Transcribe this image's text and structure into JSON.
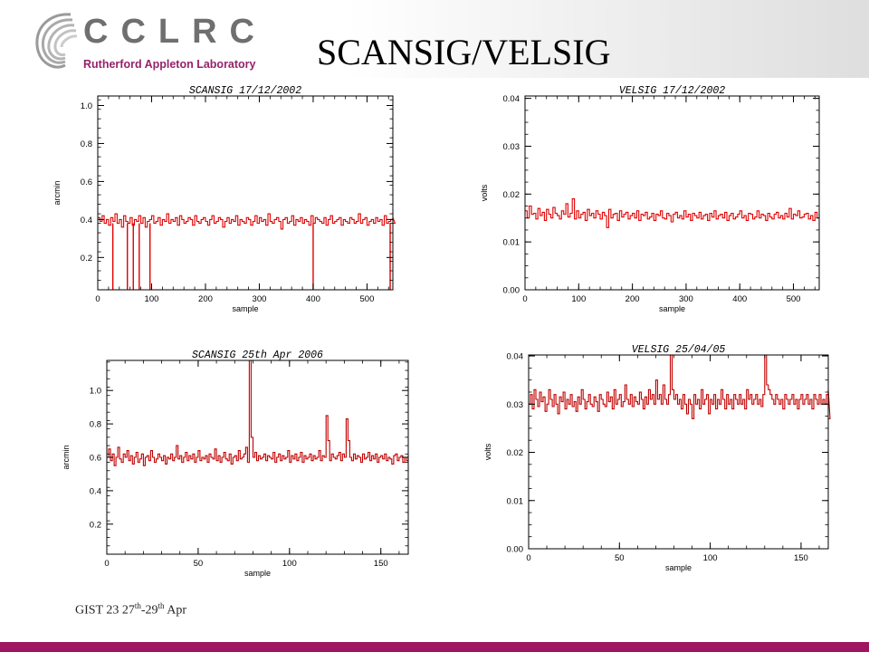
{
  "slide": {
    "title": "SCANSIG/VELSIG",
    "logo_text": "CCLRC",
    "logo_sub": "Rutherford Appleton Laboratory",
    "footer": {
      "prefix": "GIST 23 27",
      "sup1": "th",
      "mid": "-29",
      "sup2": "th",
      "suffix": " Apr"
    },
    "colors": {
      "accent_bar": "#a0155f",
      "logo_sub": "#96236a",
      "trace_bright": "#e00000",
      "trace_dark": "#c00000"
    }
  },
  "chart_data": [
    {
      "id": "scansig-2002",
      "type": "line",
      "title": "SCANSIG 17/12/2002",
      "xlabel": "sample",
      "ylabel": "arcmin",
      "xlim": [
        0,
        548
      ],
      "ylim": [
        0.03,
        1.05
      ],
      "xticks": [
        0,
        100,
        200,
        300,
        400,
        500
      ],
      "yticks": [
        0.2,
        0.4,
        0.6,
        0.8,
        1.0
      ],
      "ytick_labels": [
        "0.2",
        "0.4",
        "0.6",
        "0.8",
        "1.0"
      ],
      "series": [
        {
          "color": "#e00000",
          "step": 4,
          "values": [
            0.41,
            0.39,
            0.42,
            0.38,
            0.4,
            0.37,
            0.41,
            0.39,
            0.43,
            0.38,
            0.4,
            0.36,
            0.42,
            0.39,
            0.38,
            0.41,
            0.37,
            0.4,
            0.39,
            0.42,
            0.38,
            0.41,
            0.36,
            0.39,
            0.4,
            0.42,
            0.38,
            0.39,
            0.41,
            0.37,
            0.4,
            0.39,
            0.43,
            0.38,
            0.4,
            0.39,
            0.41,
            0.37,
            0.42,
            0.4,
            0.38,
            0.39,
            0.41,
            0.4,
            0.37,
            0.42,
            0.39,
            0.38,
            0.4,
            0.41,
            0.39,
            0.37,
            0.4,
            0.42,
            0.38,
            0.39,
            0.41,
            0.4,
            0.36,
            0.39,
            0.41,
            0.38,
            0.4,
            0.39,
            0.42,
            0.37,
            0.4,
            0.39,
            0.38,
            0.41,
            0.4,
            0.37,
            0.39,
            0.42,
            0.38,
            0.41,
            0.39,
            0.4,
            0.37,
            0.43,
            0.39,
            0.38,
            0.4,
            0.41,
            0.39,
            0.35,
            0.4,
            0.41,
            0.38,
            0.39,
            0.42,
            0.37,
            0.4,
            0.39,
            0.41,
            0.38,
            0.4,
            0.39,
            0.37,
            0.42,
            0.38,
            0.41,
            0.4,
            0.39,
            0.38,
            0.41,
            0.37,
            0.4,
            0.42,
            0.38,
            0.39,
            0.4,
            0.41,
            0.37,
            0.4,
            0.39,
            0.38,
            0.41,
            0.4,
            0.38,
            0.39,
            0.43,
            0.38,
            0.4,
            0.41,
            0.37,
            0.39,
            0.4,
            0.38,
            0.41,
            0.39,
            0.4,
            0.37,
            0.42,
            0.38,
            0.39,
            0.4,
            0.41,
            0.38
          ]
        }
      ],
      "dropouts": [
        {
          "x": 28,
          "y": 0.03
        },
        {
          "x": 55,
          "y": 0.03
        },
        {
          "x": 66,
          "y": 0.03
        },
        {
          "x": 77,
          "y": 0.03
        },
        {
          "x": 97,
          "y": 0.03
        },
        {
          "x": 400,
          "y": 0.03
        },
        {
          "x": 543,
          "y": 0.03
        }
      ]
    },
    {
      "id": "velsig-2002",
      "type": "line",
      "title": "VELSIG 17/12/2002",
      "xlabel": "sample",
      "ylabel": "volts",
      "xlim": [
        0,
        548
      ],
      "ylim": [
        0,
        0.0405
      ],
      "xticks": [
        0,
        100,
        200,
        300,
        400,
        500
      ],
      "yticks": [
        0,
        0.01,
        0.02,
        0.03,
        0.04
      ],
      "ytick_labels": [
        "0.00",
        "0.01",
        "0.02",
        "0.03",
        "0.04"
      ],
      "series": [
        {
          "color": "#e00000",
          "step": 4,
          "values": [
            0.0165,
            0.015,
            0.0175,
            0.0158,
            0.016,
            0.0148,
            0.017,
            0.0155,
            0.0162,
            0.0145,
            0.0168,
            0.0158,
            0.015,
            0.0172,
            0.016,
            0.0155,
            0.0148,
            0.0165,
            0.0158,
            0.018,
            0.0152,
            0.016,
            0.019,
            0.0148,
            0.0165,
            0.015,
            0.0158,
            0.0162,
            0.0145,
            0.0168,
            0.0155,
            0.016,
            0.015,
            0.0165,
            0.0158,
            0.0148,
            0.0162,
            0.0155,
            0.013,
            0.0168,
            0.015,
            0.0158,
            0.016,
            0.0145,
            0.0165,
            0.0152,
            0.0158,
            0.0162,
            0.0148,
            0.0155,
            0.016,
            0.015,
            0.0165,
            0.0145,
            0.0158,
            0.0155,
            0.0162,
            0.0148,
            0.0152,
            0.016,
            0.0145,
            0.0158,
            0.0155,
            0.0165,
            0.015,
            0.0148,
            0.016,
            0.0155,
            0.0142,
            0.0158,
            0.0162,
            0.015,
            0.0155,
            0.0148,
            0.0165,
            0.0152,
            0.0158,
            0.0145,
            0.016,
            0.0155,
            0.015,
            0.0162,
            0.0148,
            0.0155,
            0.0158,
            0.0145,
            0.016,
            0.0152,
            0.0165,
            0.0148,
            0.0155,
            0.0158,
            0.015,
            0.0162,
            0.0145,
            0.0155,
            0.016,
            0.0148,
            0.0152,
            0.0158,
            0.0165,
            0.015,
            0.0155,
            0.0145,
            0.016,
            0.0158,
            0.0148,
            0.0152,
            0.0165,
            0.015,
            0.0158,
            0.0155,
            0.0145,
            0.016,
            0.0152,
            0.0148,
            0.0158,
            0.0162,
            0.015,
            0.0155,
            0.0148,
            0.016,
            0.0152,
            0.017,
            0.0148,
            0.0158,
            0.0155,
            0.0165,
            0.015,
            0.0152,
            0.0158,
            0.016,
            0.0148,
            0.0155,
            0.0145,
            0.0162,
            0.015,
            0.0158
          ]
        }
      ]
    },
    {
      "id": "scansig-2006",
      "type": "line",
      "title": "SCANSIG 25th Apr 2006",
      "xlabel": "sample",
      "ylabel": "arcmin",
      "xlim": [
        0,
        165
      ],
      "ylim": [
        0.02,
        1.18
      ],
      "xticks": [
        0,
        50,
        100,
        150
      ],
      "yticks": [
        0.2,
        0.4,
        0.6,
        0.8,
        1.0
      ],
      "ytick_labels": [
        "0.2",
        "0.4",
        "0.6",
        "0.8",
        "1.0"
      ],
      "series": [
        {
          "color": "#c00000",
          "step": 1,
          "values": [
            0.6,
            0.65,
            0.58,
            0.62,
            0.55,
            0.6,
            0.66,
            0.59,
            0.57,
            0.62,
            0.6,
            0.64,
            0.58,
            0.61,
            0.56,
            0.6,
            0.63,
            0.57,
            0.59,
            0.62,
            0.55,
            0.6,
            0.61,
            0.58,
            0.64,
            0.6,
            0.57,
            0.59,
            0.62,
            0.6,
            0.58,
            0.61,
            0.56,
            0.6,
            0.59,
            0.62,
            0.58,
            0.6,
            0.67,
            0.59,
            0.61,
            0.57,
            0.6,
            0.63,
            0.58,
            0.61,
            0.59,
            0.62,
            0.57,
            0.6,
            0.64,
            0.58,
            0.6,
            0.59,
            0.61,
            0.57,
            0.62,
            0.6,
            0.59,
            0.65,
            0.58,
            0.61,
            0.57,
            0.6,
            0.63,
            0.59,
            0.58,
            0.62,
            0.56,
            0.6,
            0.61,
            0.58,
            0.64,
            0.59,
            0.6,
            0.62,
            0.66,
            0.57,
            1.18,
            0.72,
            0.6,
            0.63,
            0.58,
            0.61,
            0.59,
            0.6,
            0.62,
            0.58,
            0.61,
            0.6,
            0.59,
            0.63,
            0.57,
            0.6,
            0.62,
            0.58,
            0.61,
            0.59,
            0.6,
            0.64,
            0.57,
            0.61,
            0.59,
            0.62,
            0.58,
            0.6,
            0.63,
            0.57,
            0.61,
            0.59,
            0.6,
            0.62,
            0.58,
            0.61,
            0.59,
            0.6,
            0.64,
            0.58,
            0.61,
            0.6,
            0.85,
            0.7,
            0.58,
            0.62,
            0.6,
            0.59,
            0.61,
            0.63,
            0.58,
            0.62,
            0.6,
            0.83,
            0.7,
            0.6,
            0.58,
            0.62,
            0.59,
            0.61,
            0.6,
            0.57,
            0.62,
            0.59,
            0.6,
            0.63,
            0.58,
            0.61,
            0.59,
            0.62,
            0.57,
            0.6,
            0.61,
            0.59,
            0.62,
            0.58,
            0.6,
            0.59,
            0.56,
            0.61,
            0.62,
            0.58,
            0.6,
            0.61,
            0.57,
            0.6,
            0.58,
            0.61
          ]
        }
      ]
    },
    {
      "id": "velsig-2005",
      "type": "line",
      "title": "VELSIG 25/04/05",
      "xlabel": "sample",
      "ylabel": "volts",
      "xlim": [
        0,
        165
      ],
      "ylim": [
        0,
        0.0402
      ],
      "xticks": [
        0,
        50,
        100,
        150
      ],
      "yticks": [
        0,
        0.01,
        0.02,
        0.03,
        0.04
      ],
      "ytick_labels": [
        "0.00",
        "0.01",
        "0.02",
        "0.03",
        "0.04"
      ],
      "series": [
        {
          "color": "#c00000",
          "step": 1,
          "values": [
            0.03,
            0.032,
            0.029,
            0.033,
            0.031,
            0.0295,
            0.0325,
            0.0305,
            0.0315,
            0.0285,
            0.03,
            0.033,
            0.031,
            0.0295,
            0.032,
            0.03,
            0.028,
            0.0315,
            0.0305,
            0.0325,
            0.029,
            0.031,
            0.03,
            0.032,
            0.0295,
            0.0305,
            0.0285,
            0.0315,
            0.03,
            0.033,
            0.031,
            0.029,
            0.0305,
            0.032,
            0.03,
            0.0295,
            0.0315,
            0.0305,
            0.0285,
            0.032,
            0.031,
            0.03,
            0.0295,
            0.0325,
            0.0305,
            0.0315,
            0.029,
            0.033,
            0.03,
            0.031,
            0.032,
            0.0295,
            0.0305,
            0.034,
            0.031,
            0.03,
            0.032,
            0.0295,
            0.0315,
            0.0305,
            0.03,
            0.0325,
            0.031,
            0.029,
            0.0315,
            0.03,
            0.033,
            0.031,
            0.032,
            0.03,
            0.035,
            0.031,
            0.032,
            0.03,
            0.034,
            0.031,
            0.03,
            0.032,
            0.0405,
            0.033,
            0.031,
            0.032,
            0.03,
            0.031,
            0.029,
            0.032,
            0.03,
            0.028,
            0.031,
            0.03,
            0.027,
            0.032,
            0.03,
            0.031,
            0.029,
            0.033,
            0.03,
            0.031,
            0.032,
            0.028,
            0.031,
            0.03,
            0.032,
            0.029,
            0.031,
            0.03,
            0.033,
            0.031,
            0.029,
            0.032,
            0.03,
            0.031,
            0.029,
            0.032,
            0.031,
            0.03,
            0.032,
            0.03,
            0.031,
            0.029,
            0.033,
            0.031,
            0.032,
            0.03,
            0.031,
            0.032,
            0.03,
            0.031,
            0.0295,
            0.032,
            0.0405,
            0.034,
            0.033,
            0.032,
            0.031,
            0.03,
            0.032,
            0.031,
            0.03,
            0.031,
            0.029,
            0.032,
            0.031,
            0.03,
            0.031,
            0.032,
            0.03,
            0.031,
            0.029,
            0.031,
            0.032,
            0.03,
            0.031,
            0.032,
            0.03,
            0.031,
            0.029,
            0.032,
            0.031,
            0.03,
            0.032,
            0.03,
            0.031,
            0.03,
            0.032,
            0.033,
            0.027
          ]
        }
      ]
    }
  ]
}
